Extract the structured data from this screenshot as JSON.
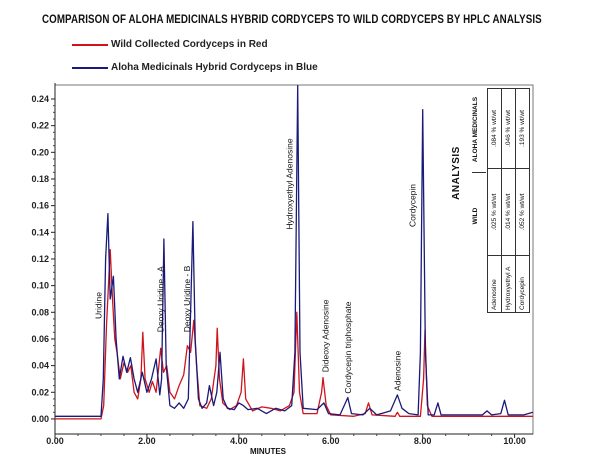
{
  "chart_data": {
    "type": "line",
    "title": "COMPARISON OF ALOHA MEDICINALS HYBRID CORDYCEPS TO WILD CORDYCEPS BY HPLC ANALYSIS",
    "xlabel": "MINUTES",
    "ylabel": "",
    "xlim": [
      0,
      10.4
    ],
    "ylim": [
      -0.0113,
      0.2505
    ],
    "x_ticks": [
      "0.00",
      "2.00",
      "4.00",
      "6.00",
      "8.00",
      "10.00"
    ],
    "x_tick_values": [
      0,
      2,
      4,
      6,
      8,
      10
    ],
    "y_ticks": [
      "0.00",
      "0.02",
      "0.04",
      "0.06",
      "0.08",
      "0.10",
      "0.12",
      "0.14",
      "0.16",
      "0.18",
      "0.20",
      "0.22",
      "0.24"
    ],
    "y_tick_values": [
      0,
      0.02,
      0.04,
      0.06,
      0.08,
      0.1,
      0.12,
      0.14,
      0.16,
      0.18,
      0.2,
      0.22,
      0.24
    ],
    "legend": "top-left",
    "series": [
      {
        "name": "Wild Collected Cordyceps in Red",
        "color": "#d0141c",
        "points": [
          [
            0,
            0.0
          ],
          [
            1.0,
            0.0
          ],
          [
            1.06,
            0.01
          ],
          [
            1.12,
            0.07
          ],
          [
            1.2,
            0.127
          ],
          [
            1.25,
            0.09
          ],
          [
            1.3,
            0.06
          ],
          [
            1.35,
            0.05
          ],
          [
            1.42,
            0.03
          ],
          [
            1.5,
            0.042
          ],
          [
            1.58,
            0.035
          ],
          [
            1.65,
            0.04
          ],
          [
            1.72,
            0.02
          ],
          [
            1.8,
            0.015
          ],
          [
            1.87,
            0.03
          ],
          [
            1.91,
            0.065
          ],
          [
            1.96,
            0.03
          ],
          [
            2.05,
            0.02
          ],
          [
            2.12,
            0.028
          ],
          [
            2.2,
            0.02
          ],
          [
            2.3,
            0.053
          ],
          [
            2.36,
            0.035
          ],
          [
            2.43,
            0.04
          ],
          [
            2.5,
            0.02
          ],
          [
            2.6,
            0.015
          ],
          [
            2.7,
            0.025
          ],
          [
            2.8,
            0.033
          ],
          [
            2.88,
            0.055
          ],
          [
            2.95,
            0.05
          ],
          [
            3.02,
            0.074
          ],
          [
            3.08,
            0.04
          ],
          [
            3.15,
            0.01
          ],
          [
            3.3,
            0.008
          ],
          [
            3.4,
            0.015
          ],
          [
            3.5,
            0.04
          ],
          [
            3.53,
            0.068
          ],
          [
            3.58,
            0.03
          ],
          [
            3.65,
            0.012
          ],
          [
            3.8,
            0.007
          ],
          [
            3.95,
            0.01
          ],
          [
            4.05,
            0.02
          ],
          [
            4.1,
            0.045
          ],
          [
            4.15,
            0.015
          ],
          [
            4.3,
            0.006
          ],
          [
            4.5,
            0.009
          ],
          [
            4.7,
            0.008
          ],
          [
            4.9,
            0.006
          ],
          [
            5.1,
            0.01
          ],
          [
            5.2,
            0.02
          ],
          [
            5.26,
            0.08
          ],
          [
            5.32,
            0.02
          ],
          [
            5.4,
            0.004
          ],
          [
            5.7,
            0.004
          ],
          [
            5.8,
            0.02
          ],
          [
            5.83,
            0.031
          ],
          [
            5.9,
            0.01
          ],
          [
            6.0,
            0.003
          ],
          [
            6.5,
            0.002
          ],
          [
            6.75,
            0.004
          ],
          [
            6.82,
            0.012
          ],
          [
            6.9,
            0.003
          ],
          [
            7.4,
            0.002
          ],
          [
            7.45,
            0.005
          ],
          [
            7.5,
            0.002
          ],
          [
            7.95,
            0.002
          ],
          [
            8.02,
            0.03
          ],
          [
            8.05,
            0.067
          ],
          [
            8.1,
            0.01
          ],
          [
            8.2,
            0.002
          ],
          [
            10.4,
            0.002
          ]
        ]
      },
      {
        "name": "Aloha Medicinals Hybrid Cordyceps in Blue",
        "color": "#1a1a7a",
        "points": [
          [
            0,
            0.002
          ],
          [
            1.0,
            0.002
          ],
          [
            1.05,
            0.03
          ],
          [
            1.1,
            0.12
          ],
          [
            1.15,
            0.154
          ],
          [
            1.2,
            0.09
          ],
          [
            1.27,
            0.107
          ],
          [
            1.33,
            0.06
          ],
          [
            1.4,
            0.03
          ],
          [
            1.48,
            0.047
          ],
          [
            1.56,
            0.035
          ],
          [
            1.64,
            0.046
          ],
          [
            1.72,
            0.03
          ],
          [
            1.8,
            0.02
          ],
          [
            1.9,
            0.035
          ],
          [
            2.0,
            0.02
          ],
          [
            2.1,
            0.03
          ],
          [
            2.2,
            0.045
          ],
          [
            2.28,
            0.018
          ],
          [
            2.32,
            0.03
          ],
          [
            2.37,
            0.135
          ],
          [
            2.42,
            0.04
          ],
          [
            2.5,
            0.01
          ],
          [
            2.6,
            0.008
          ],
          [
            2.7,
            0.012
          ],
          [
            2.8,
            0.008
          ],
          [
            2.9,
            0.015
          ],
          [
            2.95,
            0.08
          ],
          [
            3.0,
            0.148
          ],
          [
            3.05,
            0.06
          ],
          [
            3.12,
            0.015
          ],
          [
            3.2,
            0.008
          ],
          [
            3.3,
            0.012
          ],
          [
            3.36,
            0.025
          ],
          [
            3.45,
            0.01
          ],
          [
            3.52,
            0.02
          ],
          [
            3.59,
            0.05
          ],
          [
            3.66,
            0.015
          ],
          [
            3.75,
            0.008
          ],
          [
            3.9,
            0.007
          ],
          [
            4.0,
            0.012
          ],
          [
            4.1,
            0.01
          ],
          [
            4.2,
            0.007
          ],
          [
            4.4,
            0.008
          ],
          [
            4.5,
            0.006
          ],
          [
            4.6,
            0.004
          ],
          [
            4.8,
            0.008
          ],
          [
            5.0,
            0.006
          ],
          [
            5.15,
            0.01
          ],
          [
            5.22,
            0.05
          ],
          [
            5.28,
            0.25
          ],
          [
            5.33,
            0.05
          ],
          [
            5.4,
            0.008
          ],
          [
            5.7,
            0.007
          ],
          [
            5.85,
            0.012
          ],
          [
            5.95,
            0.004
          ],
          [
            6.2,
            0.003
          ],
          [
            6.37,
            0.016
          ],
          [
            6.45,
            0.004
          ],
          [
            6.7,
            0.003
          ],
          [
            6.85,
            0.008
          ],
          [
            7.0,
            0.003
          ],
          [
            7.3,
            0.006
          ],
          [
            7.45,
            0.018
          ],
          [
            7.55,
            0.008
          ],
          [
            7.7,
            0.004
          ],
          [
            7.9,
            0.003
          ],
          [
            7.95,
            0.05
          ],
          [
            8.0,
            0.232
          ],
          [
            8.06,
            0.05
          ],
          [
            8.12,
            0.003
          ],
          [
            8.25,
            0.003
          ],
          [
            8.33,
            0.012
          ],
          [
            8.4,
            0.003
          ],
          [
            9.0,
            0.003
          ],
          [
            9.3,
            0.003
          ],
          [
            9.4,
            0.006
          ],
          [
            9.5,
            0.003
          ],
          [
            9.7,
            0.004
          ],
          [
            9.78,
            0.014
          ],
          [
            9.86,
            0.003
          ],
          [
            10.2,
            0.003
          ],
          [
            10.4,
            0.005
          ]
        ]
      }
    ],
    "annotations": [
      {
        "text": "Uridine",
        "x": 0.95,
        "y": 0.075
      },
      {
        "text": "Deoxy Uridine - A",
        "x": 2.3,
        "y": 0.065
      },
      {
        "text": "Deoxy Uridine - B",
        "x": 2.87,
        "y": 0.065
      },
      {
        "text": "Hydroxyethyl Adenosine",
        "x": 5.1,
        "y": 0.142
      },
      {
        "text": "Dideoxy Adenosine",
        "x": 5.89,
        "y": 0.035
      },
      {
        "text": "Cordycepin triphosphate",
        "x": 6.37,
        "y": 0.019
      },
      {
        "text": "Adenosine",
        "x": 7.45,
        "y": 0.021
      },
      {
        "text": "Cordycepin",
        "x": 7.78,
        "y": 0.144
      }
    ]
  },
  "legend": {
    "red_label": "Wild Collected Cordyceps in Red",
    "blue_label": "Aloha Medicinals Hybrid Cordyceps in Blue"
  },
  "analysis": {
    "title": "ANALYSIS",
    "col_wild": "WILD",
    "col_aloha": "ALOHA MEDICINALS",
    "rows": [
      {
        "compound": "Adenosine",
        "wild": ".025 % wt/wt",
        "aloha": ".084 % wt/wt"
      },
      {
        "compound": "Hydroxyethyl A",
        "wild": ".014 % wt/wt",
        "aloha": ".046 % wt/wt"
      },
      {
        "compound": "Cordycepin",
        "wild": ".052 % wt/wt",
        "aloha": ".193 % wt/wt"
      }
    ]
  }
}
